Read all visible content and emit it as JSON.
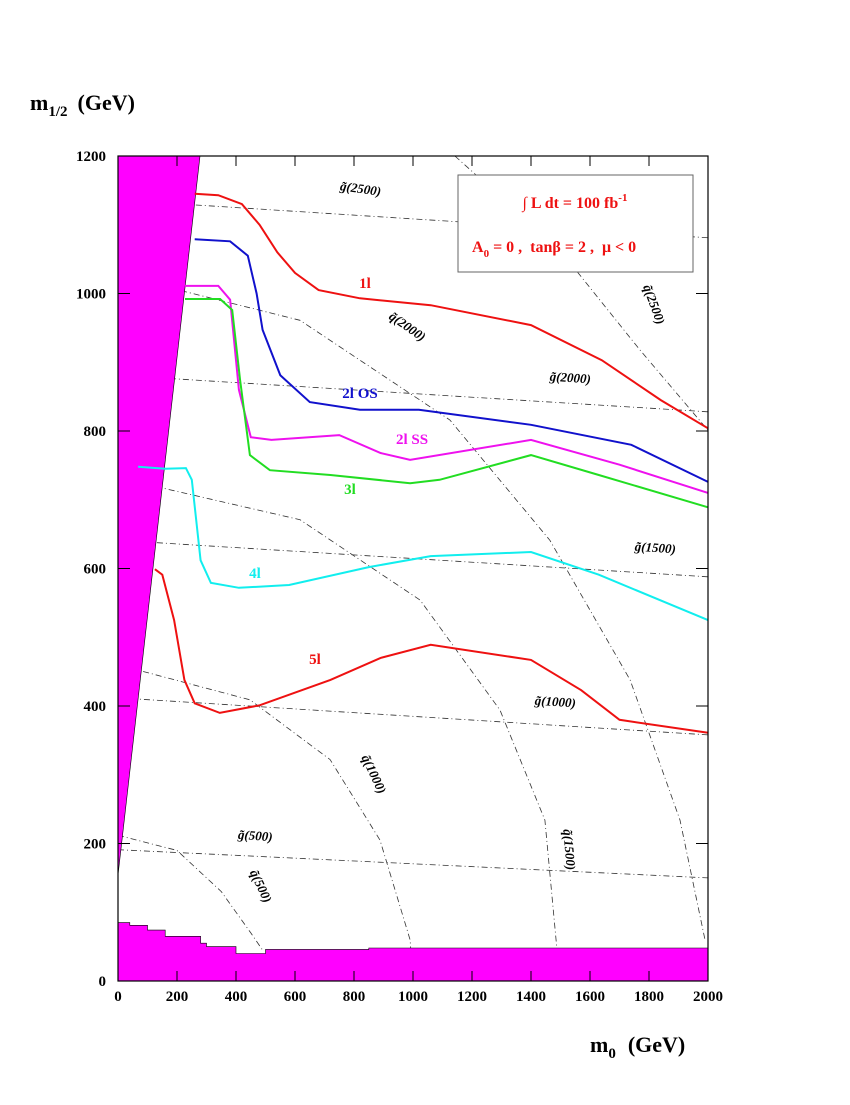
{
  "chart_data": {
    "type": "line",
    "x_label": {
      "main": "m",
      "sub": "0",
      "unit": "(GeV)"
    },
    "y_label": {
      "main": "m",
      "sub": "1/2",
      "unit": "(GeV)"
    },
    "xlim": [
      0,
      2000
    ],
    "ylim": [
      0,
      1200
    ],
    "xticks": [
      0,
      200,
      400,
      600,
      800,
      1000,
      1200,
      1400,
      1600,
      1800,
      2000
    ],
    "yticks": [
      0,
      200,
      400,
      600,
      800,
      1000,
      1200
    ],
    "annotation": {
      "lumi": "∫ L dt = 100 fb",
      "lumi_sup": "-1",
      "params_a": "A",
      "params_sub": "0",
      "params_rest": " = 0 ,  tanβ = 2 ,  μ < 0"
    },
    "series": [
      {
        "name": "1l",
        "color": "#ee1111",
        "x": [
          260,
          340,
          420,
          480,
          540,
          600,
          680,
          820,
          1060,
          1400,
          1640,
          1840,
          2000
        ],
        "y": [
          1145,
          1143,
          1130,
          1100,
          1060,
          1030,
          1005,
          993,
          983,
          954,
          903,
          845,
          804
        ]
      },
      {
        "name": "2l OS",
        "color": "#1111cc",
        "x": [
          260,
          380,
          440,
          470,
          490,
          550,
          650,
          820,
          1020,
          1400,
          1740,
          2000
        ],
        "y": [
          1079,
          1076,
          1055,
          1000,
          947,
          881,
          842,
          831,
          831,
          809,
          780,
          726
        ]
      },
      {
        "name": "2l SS",
        "color": "#ee11ee",
        "x": [
          227,
          340,
          380,
          410,
          450,
          520,
          750,
          890,
          990,
          1400,
          1700,
          2000
        ],
        "y": [
          1011,
          1011,
          991,
          860,
          791,
          787,
          794,
          768,
          758,
          787,
          751,
          710
        ]
      },
      {
        "name": "3l",
        "color": "#22dd22",
        "x": [
          227,
          346,
          387,
          414,
          447,
          515,
          720,
          990,
          1090,
          1400,
          1630,
          2000
        ],
        "y": [
          992,
          992,
          976,
          874,
          765,
          743,
          736,
          724,
          729,
          765,
          736,
          689
        ]
      },
      {
        "name": "4l",
        "color": "#11eeee",
        "x": [
          68,
          160,
          230,
          250,
          280,
          315,
          410,
          580,
          850,
          1060,
          1400,
          1630,
          2000
        ],
        "y": [
          748,
          745,
          746,
          729,
          612,
          579,
          572,
          576,
          602,
          618,
          624,
          591,
          525
        ]
      },
      {
        "name": "5l",
        "color": "#ee1111",
        "x": [
          125,
          150,
          190,
          225,
          260,
          345,
          480,
          720,
          890,
          1060,
          1400,
          1570,
          1700,
          2000
        ],
        "y": [
          599,
          591,
          525,
          438,
          404,
          390,
          401,
          438,
          470,
          489,
          467,
          423,
          380,
          361
        ]
      }
    ],
    "contours": [
      {
        "label": "g̃(2500)",
        "x": [
          0,
          2000
        ],
        "y": [
          1136,
          1081
        ]
      },
      {
        "label": "g̃(2000)",
        "x": [
          0,
          2000
        ],
        "y": [
          881,
          828
        ]
      },
      {
        "label": "g̃(1500)",
        "x": [
          0,
          2000
        ],
        "y": [
          641,
          588
        ]
      },
      {
        "label": "g̃(1000)",
        "x": [
          0,
          2000
        ],
        "y": [
          412,
          358
        ]
      },
      {
        "label": "g̃(500)",
        "x": [
          0,
          2000
        ],
        "y": [
          191,
          150
        ]
      },
      {
        "label": "q̃(500)",
        "x": [
          0,
          200,
          350,
          450,
          490
        ],
        "y": [
          212,
          190,
          130,
          70,
          45
        ]
      },
      {
        "label": "q̃(1000)",
        "x": [
          0,
          447,
          719,
          888,
          990,
          1000
        ],
        "y": [
          460,
          409,
          322,
          205,
          60,
          0
        ]
      },
      {
        "label": "q̃(1500)",
        "x": [
          0,
          617,
          1024,
          1295,
          1447,
          1498
        ],
        "y": [
          732,
          671,
          554,
          394,
          234,
          0
        ]
      },
      {
        "label": "q̃(2000)",
        "x": [
          0,
          617,
          1125,
          1464,
          1736,
          1905,
          1990
        ],
        "y": [
          1027,
          961,
          816,
          641,
          438,
          234,
          60
        ]
      },
      {
        "label": "q̃(2500)",
        "x": [
          1142,
          1498,
          1769,
          2000
        ],
        "y": [
          1200,
          1063,
          918,
          801
        ]
      }
    ],
    "region_color": "#ff00ff",
    "regions": [
      {
        "x": [
          0,
          278,
          0
        ],
        "y": [
          1200,
          1200,
          154
        ]
      },
      {
        "x": [
          0,
          0,
          40,
          40,
          100,
          100,
          160,
          160,
          280,
          280,
          300,
          300,
          400,
          400,
          500,
          500,
          850,
          850,
          2000,
          2000
        ],
        "y": [
          0,
          85,
          85,
          81,
          81,
          74,
          74,
          65,
          65,
          55,
          55,
          50,
          50,
          40,
          40,
          46,
          46,
          48,
          48,
          0
        ]
      }
    ]
  }
}
